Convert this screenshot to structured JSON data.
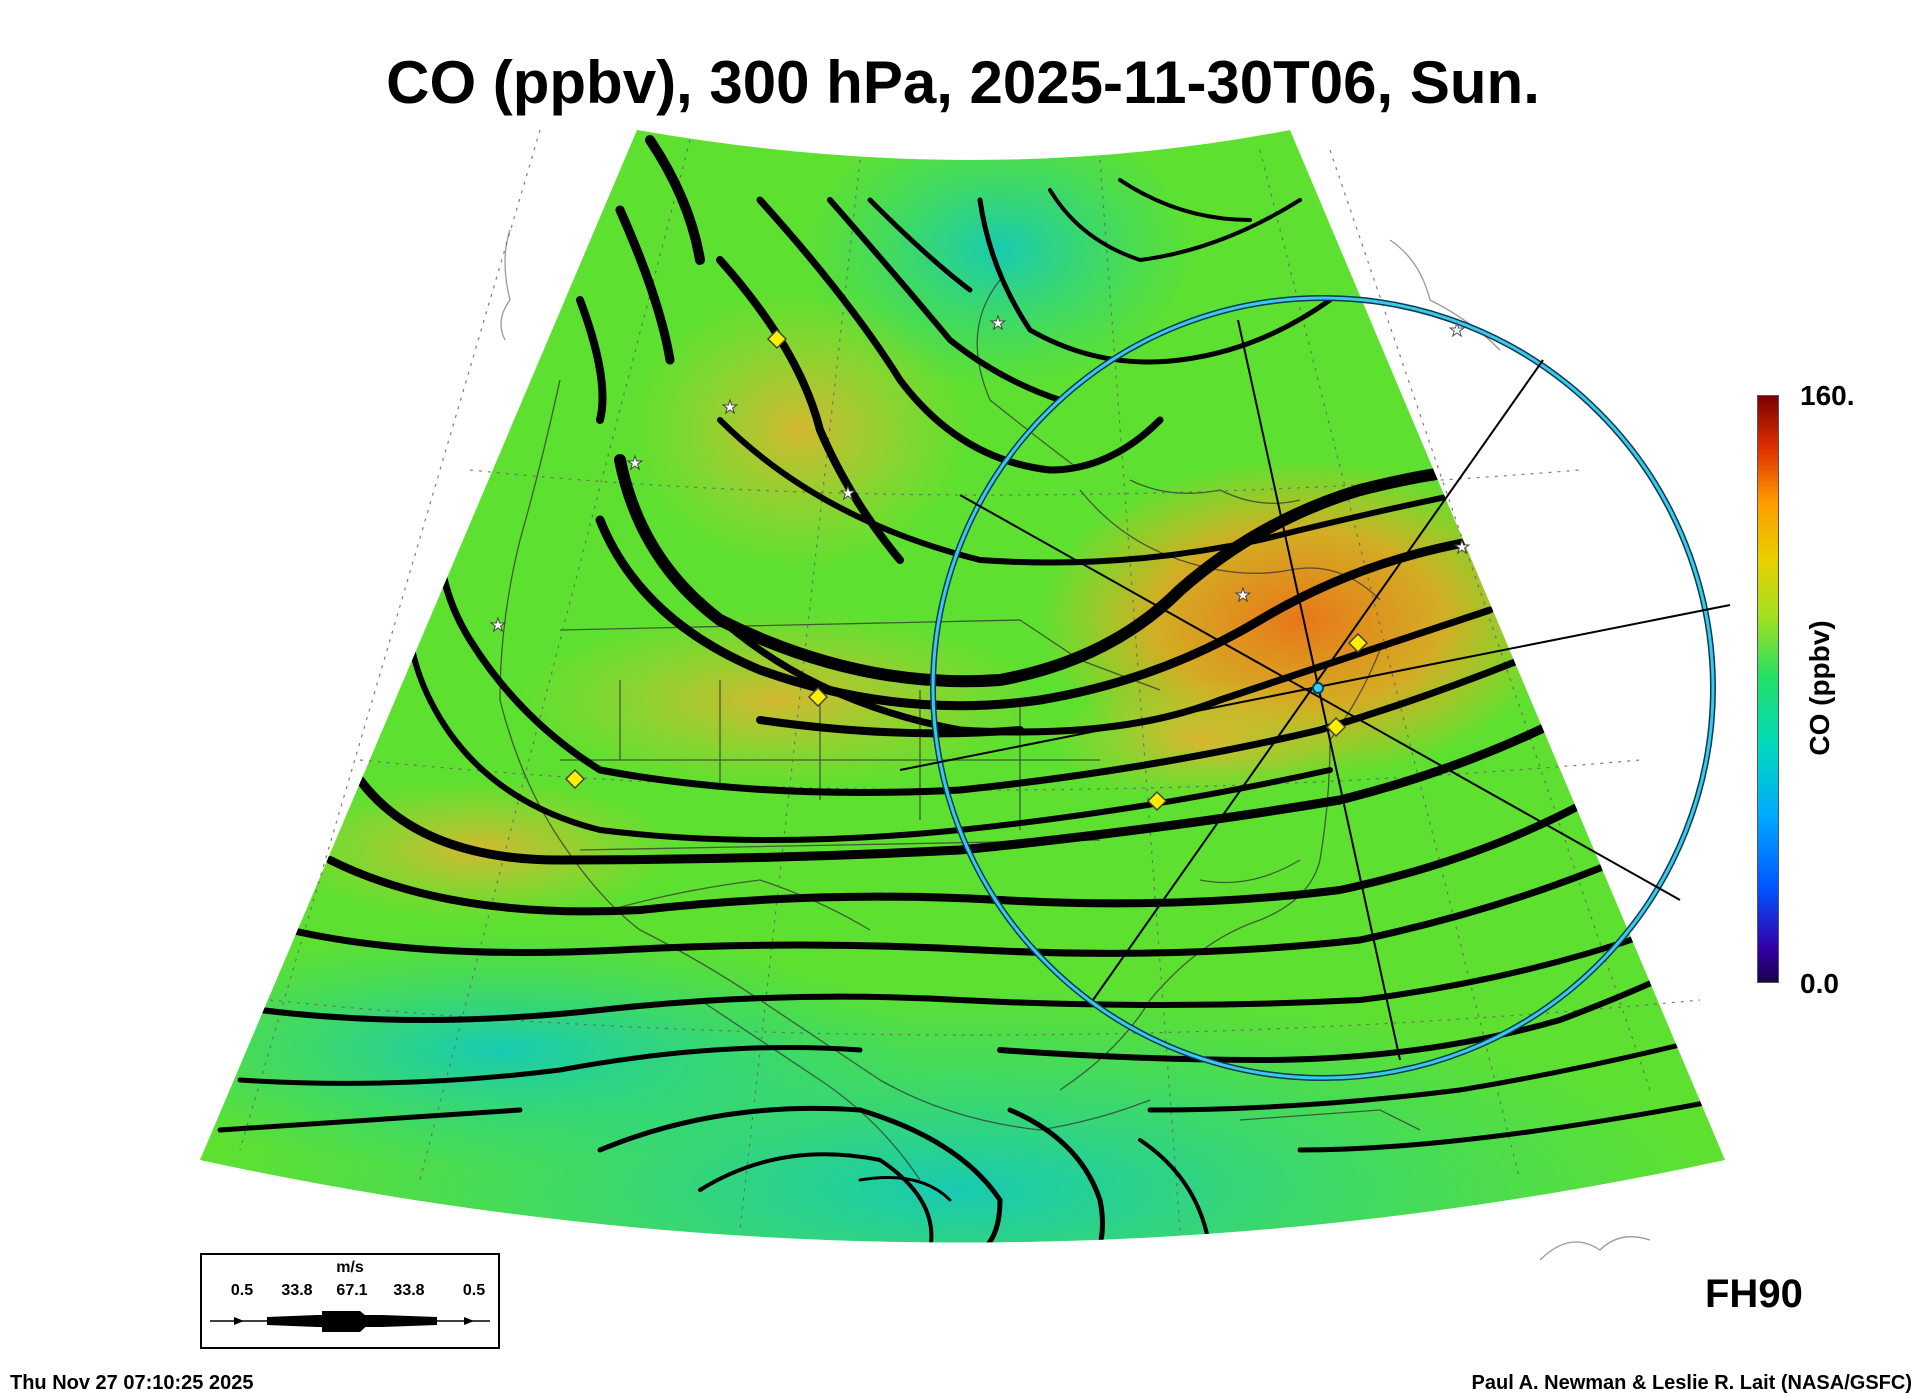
{
  "title": "CO (ppbv), 300 hPa, 2025-11-30T06, Sun.",
  "colorbar": {
    "label": "CO (ppbv)",
    "max_label": "160.",
    "min_label": "0.0",
    "range": [
      0,
      160
    ]
  },
  "forecast_hour": "FH90",
  "timestamp": "Thu Nov 27 07:10:25 2025",
  "credit": "Paul A. Newman & Leslie R. Lait (NASA/GSFC)",
  "wind_legend": {
    "unit": "m/s",
    "values": [
      "0.5",
      "33.8",
      "67.1",
      "33.8",
      "0.5"
    ]
  },
  "colors": {
    "background_field": "#5ee030",
    "high_co": "#f0a020",
    "low_co": "#20d8a0",
    "range_ring": "#2ab8d8",
    "marker_diamond": "#ffee00"
  }
}
